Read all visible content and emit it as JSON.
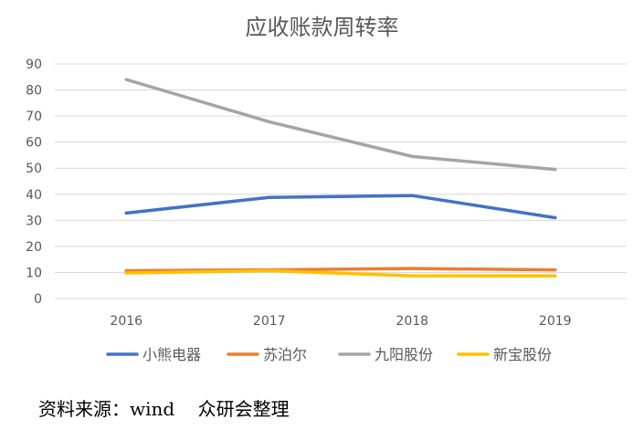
{
  "chart_data": {
    "type": "line",
    "title": "应收账款周转率",
    "xlabel": "",
    "ylabel": "",
    "categories": [
      "2016",
      "2017",
      "2018",
      "2019"
    ],
    "ylim": [
      0,
      90
    ],
    "yticks": [
      0,
      10,
      20,
      30,
      40,
      50,
      60,
      70,
      80,
      90
    ],
    "grid": true,
    "legend_position": "bottom",
    "series": [
      {
        "name": "小熊电器",
        "color": "#4472C4",
        "values": [
          32.8,
          38.8,
          39.5,
          31.0
        ]
      },
      {
        "name": "苏泊尔",
        "color": "#ED7D31",
        "values": [
          10.7,
          11.0,
          11.5,
          11.0
        ]
      },
      {
        "name": "九阳股份",
        "color": "#A5A5A5",
        "values": [
          84.0,
          67.8,
          54.5,
          49.5
        ]
      },
      {
        "name": "新宝股份",
        "color": "#FFC000",
        "values": [
          9.8,
          10.7,
          8.7,
          8.7
        ]
      }
    ]
  },
  "source_note": "资料来源：wind    众研会整理"
}
